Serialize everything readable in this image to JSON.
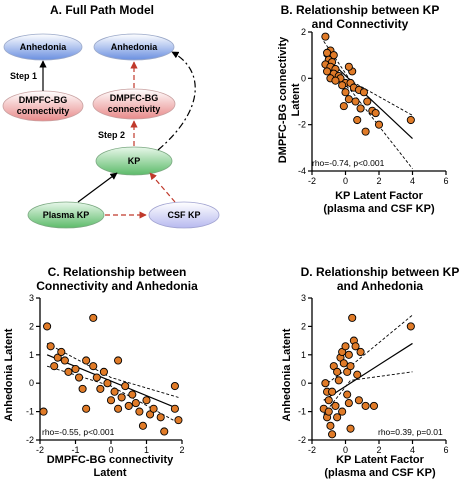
{
  "panel_a": {
    "title": "A. Full Path Model",
    "nodes": {
      "anhedonia_left": "Anhedonia",
      "anhedonia_right": "Anhedonia",
      "dmpfc_left": [
        "DMPFC-BG",
        "connectivity"
      ],
      "dmpfc_right": [
        "DMPFC-BG",
        "connectivity"
      ],
      "kp": "KP",
      "plasma_kp": "Plasma KP",
      "csf_kp": "CSF KP"
    },
    "step1": "Step 1",
    "step2": "Step 2",
    "colors": {
      "blue": "#6a8fe0",
      "pink": "#e88a8a",
      "green": "#6fc57a",
      "lavender": "#b7b9ef",
      "dashed_red": "#c0392b"
    }
  },
  "chart_data": [
    {
      "id": "B",
      "type": "scatter",
      "title": [
        "B. Relationship between KP",
        "and Connectivity"
      ],
      "xlabel": [
        "KP Latent Factor",
        "(plasma and CSF KP)"
      ],
      "ylabel": [
        "DMPFC-BG connectivity",
        "Latent"
      ],
      "xlim": [
        -2,
        6
      ],
      "ylim": [
        -4,
        2
      ],
      "xticks": [
        "-2",
        "0",
        "2",
        "4",
        "6"
      ],
      "yticks": [
        "2",
        "0",
        "-2",
        "-4"
      ],
      "annotation": "rho=-0.74, p<0.001",
      "points": [
        [
          -1.2,
          1.8
        ],
        [
          -0.9,
          1.2
        ],
        [
          -1.1,
          1.1
        ],
        [
          -0.7,
          1.0
        ],
        [
          -1.0,
          0.8
        ],
        [
          -0.8,
          0.7
        ],
        [
          -1.2,
          0.6
        ],
        [
          -0.9,
          0.5
        ],
        [
          -0.6,
          0.4
        ],
        [
          -1.1,
          0.3
        ],
        [
          -0.7,
          0.2
        ],
        [
          -0.4,
          0.1
        ],
        [
          -0.9,
          0.0
        ],
        [
          -0.3,
          0.0
        ],
        [
          -0.6,
          -0.1
        ],
        [
          0.0,
          -0.2
        ],
        [
          -0.2,
          -0.3
        ],
        [
          0.3,
          -0.2
        ],
        [
          0.5,
          -0.4
        ],
        [
          0.0,
          -0.6
        ],
        [
          0.8,
          -0.5
        ],
        [
          1.1,
          -0.6
        ],
        [
          0.2,
          -0.9
        ],
        [
          0.6,
          -1.0
        ],
        [
          1.3,
          -1.0
        ],
        [
          -0.1,
          -1.2
        ],
        [
          0.9,
          -1.3
        ],
        [
          1.6,
          -1.4
        ],
        [
          1.8,
          -1.5
        ],
        [
          2.0,
          -2.0
        ],
        [
          0.7,
          -1.8
        ],
        [
          1.2,
          -2.3
        ],
        [
          3.9,
          -1.8
        ],
        [
          0.4,
          0.3
        ],
        [
          0.2,
          0.5
        ]
      ],
      "fit": [
        [
          -1.3,
          1.0
        ],
        [
          4.0,
          -2.6
        ]
      ],
      "ci_upper": [
        [
          -1.3,
          1.6
        ],
        [
          0.3,
          -0.1
        ],
        [
          4.0,
          -1.6
        ]
      ],
      "ci_lower": [
        [
          -1.3,
          0.5
        ],
        [
          0.3,
          -0.5
        ],
        [
          4.0,
          -3.9
        ]
      ],
      "grid": false
    },
    {
      "id": "C",
      "type": "scatter",
      "title": [
        "C. Relationship between",
        "Connectivity and Anhedonia"
      ],
      "xlabel": [
        "DMPFC-BG connectivity",
        "Latent"
      ],
      "ylabel": [
        "Anhedonia Latent"
      ],
      "xlim": [
        -2,
        2
      ],
      "ylim": [
        -2,
        3
      ],
      "xticks": [
        "-2",
        "-1",
        "0",
        "1",
        "2"
      ],
      "yticks": [
        "3",
        "2",
        "1",
        "0",
        "-1",
        "-2"
      ],
      "annotation": "rho=-0.55, p<0.001",
      "points": [
        [
          -1.8,
          2.0
        ],
        [
          -1.7,
          1.3
        ],
        [
          -1.5,
          0.9
        ],
        [
          -1.4,
          1.1
        ],
        [
          -1.3,
          0.8
        ],
        [
          -1.6,
          0.6
        ],
        [
          -1.2,
          0.4
        ],
        [
          -1.0,
          0.5
        ],
        [
          -0.9,
          0.2
        ],
        [
          -0.8,
          -0.2
        ],
        [
          -1.9,
          -1.0
        ],
        [
          -0.7,
          0.8
        ],
        [
          -0.5,
          2.3
        ],
        [
          -0.5,
          0.6
        ],
        [
          -0.3,
          -0.2
        ],
        [
          -0.2,
          0.4
        ],
        [
          -0.1,
          0.0
        ],
        [
          0.0,
          -0.6
        ],
        [
          0.1,
          -0.3
        ],
        [
          0.2,
          0.8
        ],
        [
          0.2,
          -0.9
        ],
        [
          0.3,
          -0.5
        ],
        [
          0.4,
          -0.1
        ],
        [
          0.5,
          -0.8
        ],
        [
          0.6,
          -0.4
        ],
        [
          0.7,
          -0.7
        ],
        [
          0.8,
          -1.0
        ],
        [
          0.9,
          -1.5
        ],
        [
          1.0,
          -0.6
        ],
        [
          1.1,
          -1.1
        ],
        [
          1.2,
          -0.9
        ],
        [
          1.4,
          -1.2
        ],
        [
          1.5,
          -1.7
        ],
        [
          1.8,
          -0.9
        ],
        [
          1.9,
          -1.3
        ],
        [
          -0.4,
          0.2
        ],
        [
          -0.7,
          -0.9
        ],
        [
          1.8,
          -0.1
        ]
      ],
      "fit": [
        [
          -1.8,
          1.0
        ],
        [
          1.9,
          -0.9
        ]
      ],
      "ci_upper": [
        [
          -1.8,
          1.4
        ],
        [
          0.0,
          0.2
        ],
        [
          1.9,
          -0.5
        ]
      ],
      "ci_lower": [
        [
          -1.8,
          0.6
        ],
        [
          0.0,
          -0.1
        ],
        [
          1.9,
          -1.4
        ]
      ],
      "grid": false
    },
    {
      "id": "D",
      "type": "scatter",
      "title": [
        "D. Relationship between KP",
        "and Anhedonia"
      ],
      "xlabel": [
        "KP Latent Factor",
        "(plasma and CSF KP)"
      ],
      "ylabel": [
        "Anhedonia Latent"
      ],
      "xlim": [
        -2,
        6
      ],
      "ylim": [
        -2,
        3
      ],
      "xticks": [
        "-2",
        "0",
        "2",
        "4",
        "6"
      ],
      "yticks": [
        "3",
        "2",
        "1",
        "0",
        "-1",
        "-2"
      ],
      "annotation": "rho=0.39, p=0.01",
      "points": [
        [
          -1.2,
          0.0
        ],
        [
          -1.1,
          -0.3
        ],
        [
          -1.0,
          -0.6
        ],
        [
          -1.3,
          -0.9
        ],
        [
          -1.1,
          -1.2
        ],
        [
          -0.9,
          -1.5
        ],
        [
          -1.0,
          -1.0
        ],
        [
          -0.8,
          -0.3
        ],
        [
          -0.7,
          0.6
        ],
        [
          -0.6,
          -0.8
        ],
        [
          -0.5,
          -1.2
        ],
        [
          -0.4,
          0.1
        ],
        [
          -0.3,
          0.9
        ],
        [
          -0.2,
          1.1
        ],
        [
          -0.1,
          0.7
        ],
        [
          0.0,
          1.3
        ],
        [
          0.1,
          0.4
        ],
        [
          0.2,
          1.0
        ],
        [
          0.3,
          0.6
        ],
        [
          0.4,
          2.3
        ],
        [
          0.5,
          1.5
        ],
        [
          0.6,
          1.3
        ],
        [
          0.7,
          0.3
        ],
        [
          0.2,
          -0.7
        ],
        [
          -0.2,
          -1.0
        ],
        [
          0.8,
          -0.6
        ],
        [
          1.2,
          -0.8
        ],
        [
          1.7,
          -0.8
        ],
        [
          0.3,
          -1.6
        ],
        [
          3.9,
          2.0
        ],
        [
          -0.8,
          -1.8
        ],
        [
          0.1,
          -0.4
        ],
        [
          -0.5,
          0.4
        ],
        [
          0.9,
          1.1
        ]
      ],
      "fit": [
        [
          -1.3,
          -0.6
        ],
        [
          4.0,
          1.4
        ]
      ],
      "ci_upper": [
        [
          -1.3,
          -0.1
        ],
        [
          0.3,
          0.6
        ],
        [
          4.0,
          2.4
        ]
      ],
      "ci_lower": [
        [
          -1.3,
          -1.1
        ],
        [
          0.3,
          0.1
        ],
        [
          4.0,
          0.4
        ]
      ],
      "grid": false
    }
  ],
  "colors": {
    "point_fill": "#e07b28",
    "point_stroke": "#000000"
  }
}
